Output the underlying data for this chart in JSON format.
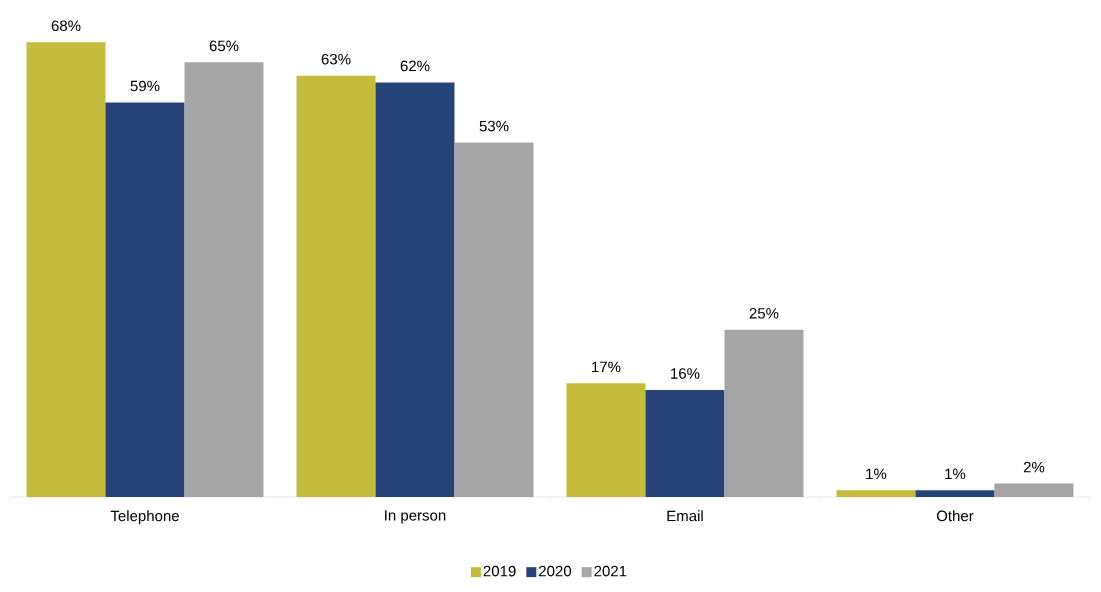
{
  "chart_data": {
    "type": "bar",
    "categories": [
      "Telephone",
      "In person",
      "Email",
      "Other"
    ],
    "series": [
      {
        "name": "2019",
        "color": "#c4bc3a",
        "values": [
          68,
          63,
          17,
          1
        ],
        "value_labels": [
          "68%",
          "63%",
          "17%",
          "1%"
        ]
      },
      {
        "name": "2020",
        "color": "#264478",
        "values": [
          59,
          62,
          16,
          1
        ],
        "value_labels": [
          "59%",
          "62%",
          "16%",
          "1%"
        ]
      },
      {
        "name": "2021",
        "color": "#a5a5a5",
        "values": [
          65,
          53,
          25,
          2
        ],
        "value_labels": [
          "65%",
          "53%",
          "25%",
          "2%"
        ]
      }
    ],
    "legend": "bottom"
  }
}
